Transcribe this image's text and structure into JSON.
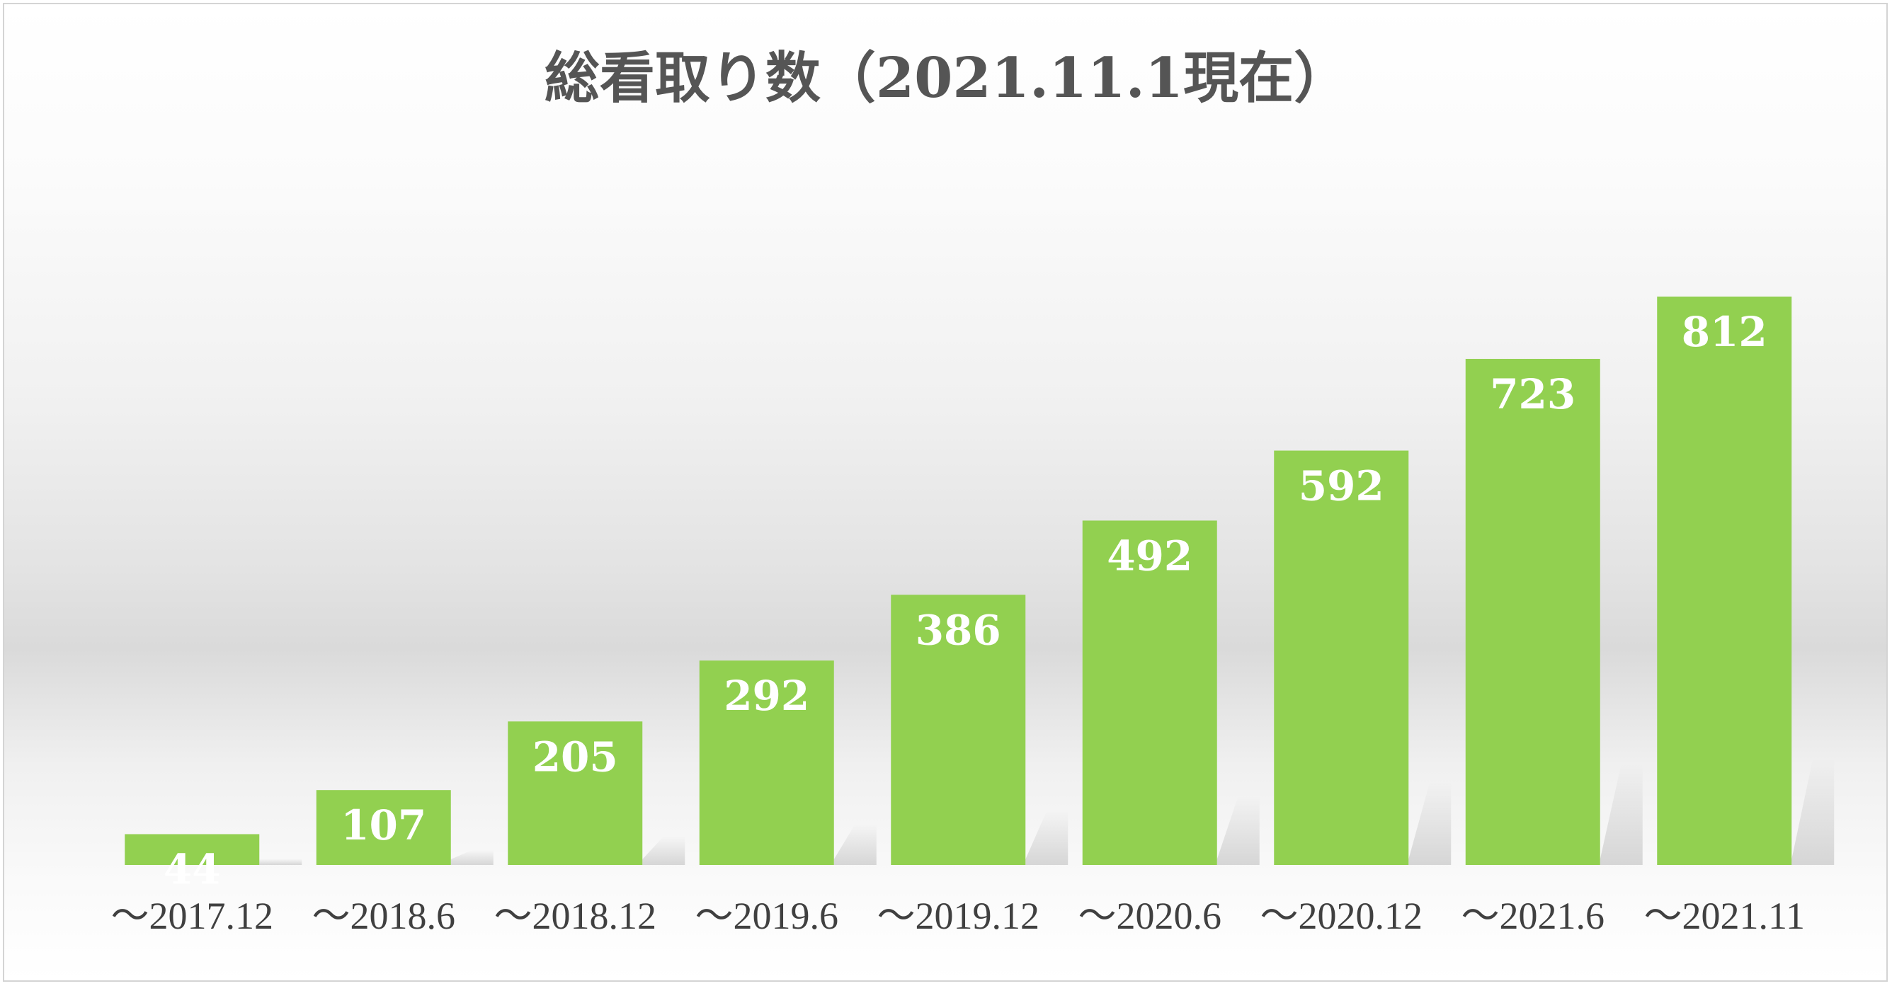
{
  "chart_data": {
    "type": "bar",
    "title": "総看取り数（2021.11.1現在）",
    "categories": [
      "～2017.12",
      "～2018.6",
      "～2018.12",
      "～2019.6",
      "～2019.12",
      "～2020.6",
      "～2020.12",
      "～2021.6",
      "～2021.11"
    ],
    "values": [
      44,
      107,
      205,
      292,
      386,
      492,
      592,
      723,
      812
    ],
    "data_labels": [
      "44",
      "107",
      "205",
      "292",
      "386",
      "492",
      "592",
      "723",
      "812"
    ],
    "xlabel": "",
    "ylabel": "",
    "ylim": [
      0,
      812
    ],
    "grid": false,
    "legend": "none",
    "bar_color": "#92d050",
    "label_color": "#ffffff"
  }
}
